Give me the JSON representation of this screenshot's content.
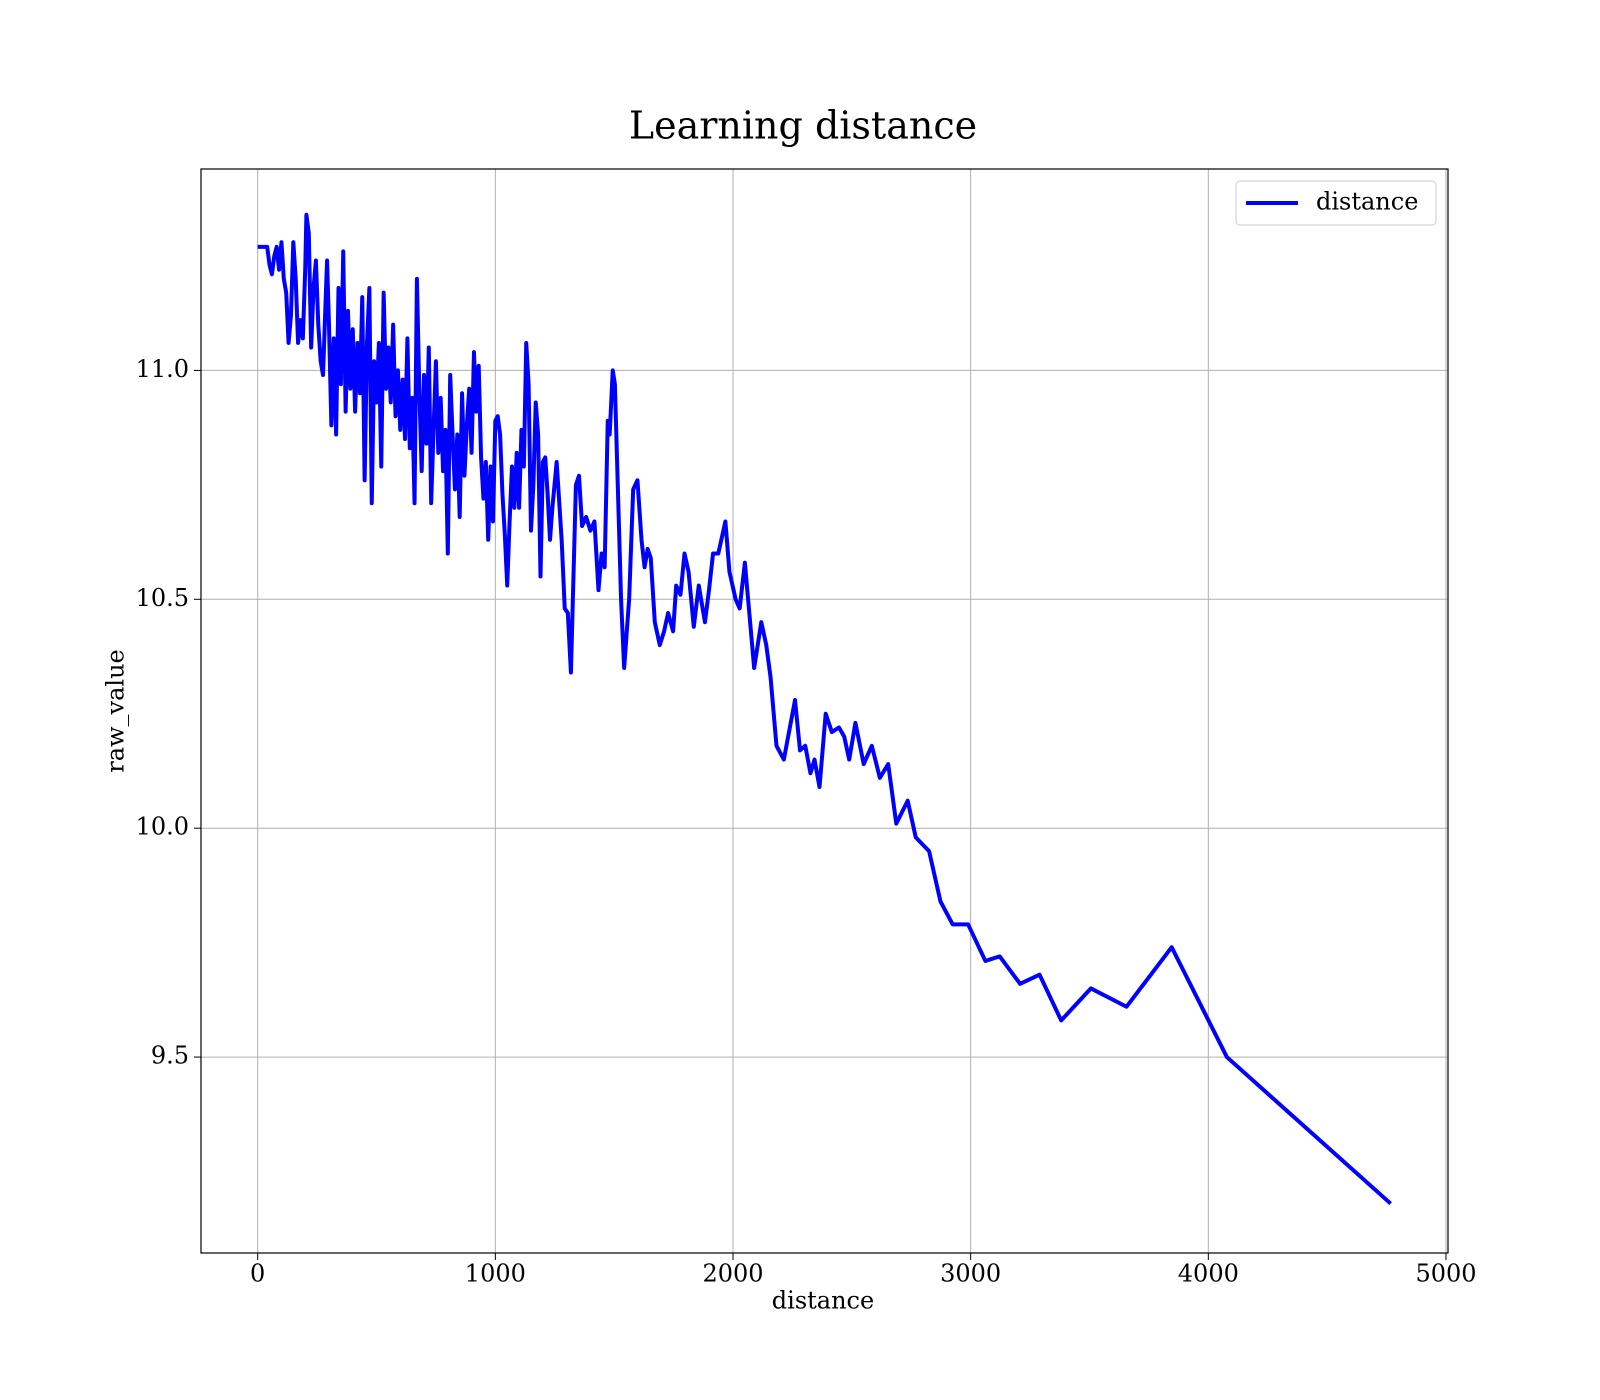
{
  "chart_data": {
    "type": "line",
    "title": "Learning distance",
    "x_label": "distance",
    "y_label": "raw_value",
    "x": [
      0,
      20,
      40,
      50,
      60,
      70,
      80,
      90,
      100,
      110,
      120,
      130,
      140,
      150,
      160,
      170,
      180,
      190,
      200,
      205,
      215,
      225,
      235,
      245,
      255,
      265,
      275,
      285,
      292,
      300,
      310,
      320,
      330,
      340,
      350,
      360,
      370,
      380,
      390,
      400,
      410,
      420,
      430,
      440,
      450,
      460,
      470,
      480,
      490,
      500,
      510,
      520,
      530,
      540,
      550,
      560,
      570,
      580,
      590,
      600,
      610,
      620,
      630,
      640,
      650,
      660,
      670,
      680,
      690,
      700,
      710,
      720,
      730,
      740,
      750,
      760,
      770,
      780,
      790,
      800,
      810,
      820,
      830,
      840,
      850,
      860,
      870,
      880,
      890,
      900,
      910,
      920,
      930,
      940,
      950,
      960,
      970,
      980,
      990,
      1000,
      1010,
      1020,
      1030,
      1040,
      1050,
      1060,
      1070,
      1080,
      1090,
      1100,
      1110,
      1120,
      1130,
      1140,
      1150,
      1160,
      1170,
      1180,
      1190,
      1200,
      1210,
      1220,
      1230,
      1240,
      1258,
      1279,
      1292,
      1305,
      1318,
      1339,
      1352,
      1365,
      1382,
      1400,
      1417,
      1434,
      1447,
      1460,
      1473,
      1481,
      1494,
      1503,
      1529,
      1542,
      1563,
      1580,
      1598,
      1615,
      1628,
      1641,
      1654,
      1671,
      1692,
      1710,
      1727,
      1748,
      1761,
      1779,
      1796,
      1813,
      1835,
      1856,
      1882,
      1899,
      1916,
      1938,
      1968,
      1985,
      2011,
      2028,
      2050,
      2089,
      2119,
      2140,
      2158,
      2183,
      2214,
      2261,
      2282,
      2304,
      2326,
      2343,
      2364,
      2390,
      2416,
      2446,
      2468,
      2489,
      2515,
      2550,
      2584,
      2618,
      2653,
      2687,
      2735,
      2769,
      2825,
      2873,
      2924,
      2989,
      3062,
      3122,
      3208,
      3290,
      3381,
      3506,
      3656,
      3846,
      4078,
      4767
    ],
    "series": [
      {
        "name": "distance",
        "color": "#0000ff",
        "values": [
          11.27,
          11.27,
          11.27,
          11.23,
          11.21,
          11.25,
          11.27,
          11.22,
          11.28,
          11.2,
          11.17,
          11.06,
          11.12,
          11.28,
          11.2,
          11.06,
          11.11,
          11.07,
          11.22,
          11.34,
          11.3,
          11.05,
          11.18,
          11.24,
          11.1,
          11.02,
          10.99,
          11.14,
          11.24,
          11.1,
          10.88,
          11.07,
          10.86,
          11.18,
          10.97,
          11.26,
          10.91,
          11.13,
          10.96,
          11.09,
          10.91,
          11.06,
          10.95,
          11.16,
          10.76,
          11.06,
          11.18,
          10.71,
          11.02,
          10.93,
          11.06,
          10.79,
          11.17,
          10.96,
          11.05,
          10.93,
          11.1,
          10.9,
          11.0,
          10.87,
          10.98,
          10.85,
          11.07,
          10.83,
          10.94,
          10.71,
          11.2,
          10.96,
          10.78,
          10.99,
          10.84,
          11.05,
          10.71,
          10.87,
          11.02,
          10.82,
          10.94,
          10.78,
          10.87,
          10.6,
          10.99,
          10.86,
          10.74,
          10.86,
          10.68,
          10.95,
          10.77,
          10.88,
          10.96,
          10.82,
          11.04,
          10.91,
          11.01,
          10.81,
          10.72,
          10.8,
          10.63,
          10.79,
          10.67,
          10.89,
          10.9,
          10.86,
          10.73,
          10.64,
          10.53,
          10.67,
          10.79,
          10.7,
          10.82,
          10.7,
          10.87,
          10.79,
          11.06,
          10.97,
          10.65,
          10.75,
          10.93,
          10.86,
          10.55,
          10.8,
          10.81,
          10.73,
          10.63,
          10.7,
          10.8,
          10.63,
          10.48,
          10.47,
          10.34,
          10.75,
          10.77,
          10.66,
          10.68,
          10.65,
          10.67,
          10.52,
          10.6,
          10.57,
          10.89,
          10.86,
          11.0,
          10.97,
          10.5,
          10.35,
          10.5,
          10.74,
          10.76,
          10.63,
          10.57,
          10.61,
          10.59,
          10.45,
          10.4,
          10.43,
          10.47,
          10.43,
          10.53,
          10.51,
          10.6,
          10.56,
          10.44,
          10.53,
          10.45,
          10.52,
          10.6,
          10.6,
          10.67,
          10.56,
          10.5,
          10.48,
          10.58,
          10.35,
          10.45,
          10.4,
          10.33,
          10.18,
          10.15,
          10.28,
          10.17,
          10.18,
          10.12,
          10.15,
          10.09,
          10.25,
          10.21,
          10.22,
          10.2,
          10.15,
          10.23,
          10.14,
          10.18,
          10.11,
          10.14,
          10.01,
          10.06,
          9.98,
          9.95,
          9.84,
          9.79,
          9.79,
          9.71,
          9.72,
          9.66,
          9.68,
          9.58,
          9.65,
          9.61,
          9.74,
          9.5,
          9.18
        ]
      }
    ],
    "xlim": [
      -238.5,
      5008.5
    ],
    "ylim": [
      9.072,
      11.44
    ],
    "xticks": [
      0,
      1000,
      2000,
      3000,
      4000,
      5000
    ],
    "yticks": [
      {
        "value": 9.5,
        "label": "9.5"
      },
      {
        "value": 10,
        "label": "10.0"
      },
      {
        "value": 10.5,
        "label": "10.5"
      },
      {
        "value": 11,
        "label": "11.0"
      }
    ],
    "grid": true,
    "legend": "upper right"
  }
}
